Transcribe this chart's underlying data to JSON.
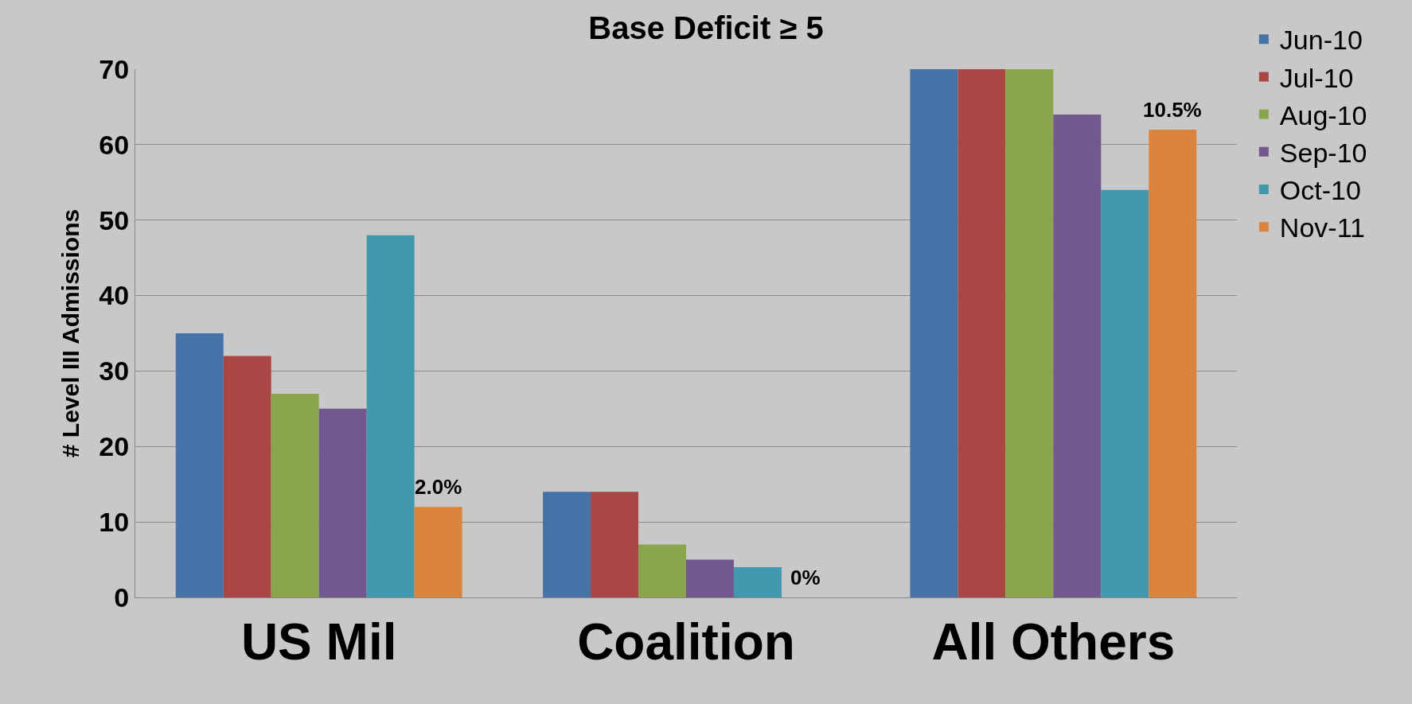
{
  "chart_data": {
    "type": "bar",
    "title": "Base Deficit ≥ 5",
    "ylabel": "# Level III Admissions",
    "categories": [
      "US Mil",
      "Coalition",
      "All Others"
    ],
    "series": [
      {
        "name": "Jun-10",
        "color": "#4572a7",
        "values": [
          35,
          14,
          70
        ]
      },
      {
        "name": "Jul-10",
        "color": "#aa4643",
        "values": [
          32,
          14,
          70
        ]
      },
      {
        "name": "Aug-10",
        "color": "#89a54e",
        "values": [
          27,
          7,
          70
        ]
      },
      {
        "name": "Sep-10",
        "color": "#71588f",
        "values": [
          25,
          5,
          64
        ]
      },
      {
        "name": "Oct-10",
        "color": "#4198af",
        "values": [
          48,
          4,
          54
        ]
      },
      {
        "name": "Nov-11",
        "color": "#db843d",
        "values": [
          12,
          0,
          62
        ]
      }
    ],
    "annotations": [
      "2.0%",
      "0%",
      "10.5%"
    ],
    "ylim": [
      0,
      70
    ],
    "yticks": [
      0,
      10,
      20,
      30,
      40,
      50,
      60,
      70
    ],
    "grid": "y",
    "legend": "right"
  }
}
